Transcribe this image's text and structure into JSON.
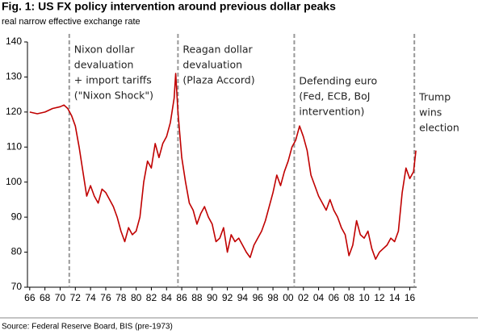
{
  "chart_data": {
    "type": "line",
    "title": "Fig. 1: US FX policy intervention around previous dollar peaks",
    "subtitle": "real narrow effective exchange rate",
    "source": "Source: Federal Reserve Board, BIS (pre-1973)",
    "color": "#c00000",
    "xlim": [
      1965.7,
      2016.9
    ],
    "ylim": [
      70,
      140
    ],
    "yticks": [
      70,
      80,
      90,
      100,
      110,
      120,
      130,
      140
    ],
    "xticks": [
      {
        "value": 1966,
        "label": "66"
      },
      {
        "value": 1968,
        "label": "68"
      },
      {
        "value": 1970,
        "label": "70"
      },
      {
        "value": 1972,
        "label": "72"
      },
      {
        "value": 1974,
        "label": "74"
      },
      {
        "value": 1976,
        "label": "76"
      },
      {
        "value": 1978,
        "label": "78"
      },
      {
        "value": 1980,
        "label": "80"
      },
      {
        "value": 1982,
        "label": "82"
      },
      {
        "value": 1984,
        "label": "84"
      },
      {
        "value": 1986,
        "label": "86"
      },
      {
        "value": 1988,
        "label": "88"
      },
      {
        "value": 1990,
        "label": "90"
      },
      {
        "value": 1992,
        "label": "92"
      },
      {
        "value": 1994,
        "label": "94"
      },
      {
        "value": 1996,
        "label": "96"
      },
      {
        "value": 1998,
        "label": "98"
      },
      {
        "value": 2000,
        "label": "00"
      },
      {
        "value": 2002,
        "label": "02"
      },
      {
        "value": 2004,
        "label": "04"
      },
      {
        "value": 2006,
        "label": "06"
      },
      {
        "value": 2008,
        "label": "08"
      },
      {
        "value": 2010,
        "label": "10"
      },
      {
        "value": 2012,
        "label": "12"
      },
      {
        "value": 2014,
        "label": "14"
      },
      {
        "value": 2016,
        "label": "16"
      }
    ],
    "x": [
      1966,
      1967,
      1968,
      1969,
      1970,
      1970.5,
      1971,
      1971.5,
      1972,
      1972.5,
      1973,
      1973.5,
      1974,
      1974.5,
      1975,
      1975.5,
      1976,
      1976.5,
      1977,
      1977.5,
      1978,
      1978.5,
      1979,
      1979.5,
      1980,
      1980.5,
      1981,
      1981.5,
      1982,
      1982.5,
      1983,
      1983.5,
      1984,
      1984.5,
      1985,
      1985.2,
      1985.5,
      1986,
      1986.5,
      1987,
      1987.5,
      1988,
      1988.5,
      1989,
      1989.5,
      1990,
      1990.5,
      1991,
      1991.5,
      1992,
      1992.5,
      1993,
      1993.5,
      1994,
      1994.5,
      1995,
      1995.5,
      1996,
      1996.5,
      1997,
      1997.5,
      1998,
      1998.5,
      1999,
      1999.5,
      2000,
      2000.5,
      2001,
      2001.5,
      2002,
      2002.5,
      2003,
      2003.5,
      2004,
      2004.5,
      2005,
      2005.5,
      2006,
      2006.5,
      2007,
      2007.5,
      2008,
      2008.5,
      2009,
      2009.5,
      2010,
      2010.5,
      2011,
      2011.5,
      2012,
      2012.5,
      2013,
      2013.5,
      2014,
      2014.5,
      2015,
      2015.5,
      2016,
      2016.5,
      2016.8
    ],
    "values": [
      120,
      119.5,
      120,
      121,
      121.5,
      122,
      121,
      119,
      116,
      110,
      103,
      96,
      99,
      96,
      94,
      98,
      97,
      95,
      93,
      90,
      86,
      83,
      87,
      85,
      86,
      90,
      100,
      106,
      104,
      111,
      107,
      111,
      113,
      117,
      124,
      131,
      120,
      107,
      100,
      94,
      92,
      88,
      91,
      93,
      90,
      88,
      83,
      84,
      87,
      80,
      85,
      83,
      84,
      82,
      80,
      78.5,
      82,
      84,
      86,
      89,
      93,
      97,
      102,
      99,
      103,
      106,
      110,
      112,
      116,
      113,
      109,
      102,
      99,
      96,
      94,
      92,
      95,
      92,
      90,
      87,
      85,
      79,
      82,
      89,
      85,
      84,
      86,
      81,
      78,
      80,
      81,
      82,
      84,
      83,
      86,
      97,
      104,
      101,
      103,
      109
    ],
    "annotations": [
      {
        "x": 1971.2,
        "lines": [
          "Nixon dollar",
          "devaluation",
          "+ import tariffs",
          "(\"Nixon Shock\")"
        ]
      },
      {
        "x": 1985.5,
        "lines": [
          "Reagan dollar",
          "devaluation",
          "(Plaza Accord)"
        ]
      },
      {
        "x": 2000.8,
        "lines": [
          "Defending euro",
          "(Fed, ECB, BoJ",
          "intervention)"
        ]
      },
      {
        "x": 2016.6,
        "lines": [
          "Trump",
          "wins",
          "election"
        ]
      }
    ]
  }
}
